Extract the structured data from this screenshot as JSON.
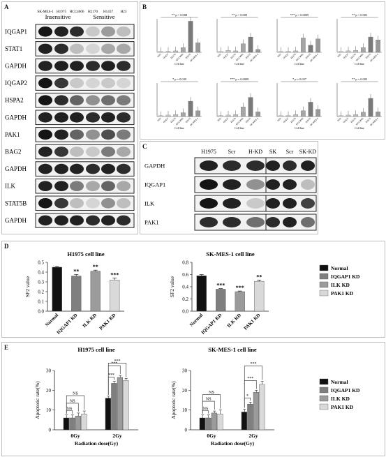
{
  "panel_letters": {
    "a": "A",
    "b": "B",
    "c": "C",
    "d": "D",
    "e": "E"
  },
  "panelA": {
    "columns": [
      "SK-MES-1",
      "H1975",
      "HCC4006",
      "H2170",
      "H1437",
      "H23"
    ],
    "group_insensitive": "Insensitive",
    "group_sensitive": "Sensitive",
    "rows": [
      "IQGAP1",
      "STAT1",
      "GAPDH",
      "IQGAP2",
      "HSPA2",
      "GAPDH",
      "PAK1",
      "BAG2",
      "GAPDH",
      "ILK",
      "STAT5B",
      "GAPDH"
    ]
  },
  "panelB": {
    "xlabel": "Cell line",
    "categories": [
      "H23",
      "H1437",
      "H2170",
      "HCC4006",
      "H1975",
      "SK-MES-1"
    ],
    "charts": [
      {
        "annot": "** p = 0.008",
        "values": [
          0.2,
          0.2,
          0.3,
          1.0,
          6.5,
          2.0
        ]
      },
      {
        "annot": "** p = 0.009",
        "values": [
          0.2,
          0.4,
          0.3,
          1.8,
          3.2,
          0.6
        ]
      },
      {
        "annot": "*** p = 0.0009",
        "values": [
          0.2,
          0.2,
          0.3,
          3.0,
          1.5,
          2.8
        ]
      },
      {
        "annot": "** p = 0.003",
        "values": [
          0.2,
          0.3,
          0.4,
          1.0,
          3.2,
          2.6
        ]
      },
      {
        "annot": "* p = 0.039",
        "values": [
          0.2,
          0.3,
          0.4,
          0.8,
          3.2,
          1.2
        ]
      },
      {
        "annot": "*** p = 0.0009",
        "values": [
          0.2,
          0.3,
          0.4,
          2.0,
          4.0,
          1.0
        ]
      },
      {
        "annot": "* p = 0.027",
        "values": [
          0.2,
          0.2,
          0.4,
          1.2,
          3.0,
          1.5
        ]
      },
      {
        "annot": "** p = 0.005",
        "values": [
          0.2,
          0.3,
          0.4,
          0.9,
          3.8,
          1.0
        ]
      }
    ]
  },
  "panelC": {
    "left_cols": [
      "H1975",
      "Scr",
      "H-KD"
    ],
    "right_cols": [
      "SK",
      "Scr",
      "SK-KD"
    ],
    "rows": [
      "GAPDH",
      "IQGAP1",
      "ILK",
      "PAK1"
    ]
  },
  "chart_data": [
    {
      "type": "bar",
      "title": "H1975  cell line",
      "ylabel": "SF2 value",
      "categories": [
        "Normal",
        "IQGAP1 KD",
        "ILK KD",
        "PAK1 KD"
      ],
      "values": [
        0.45,
        0.36,
        0.41,
        0.32
      ],
      "errors": [
        0.01,
        0.015,
        0.01,
        0.02
      ],
      "significance": [
        "",
        "**",
        "**",
        "***"
      ],
      "ylim": [
        0,
        0.5
      ],
      "yticks": [
        "0.0",
        "0.1",
        "0.2",
        "0.3",
        "0.4",
        "0.5"
      ],
      "colors": [
        "#111111",
        "#7f7f7f",
        "#9b9b9b",
        "#d9d9d9"
      ]
    },
    {
      "type": "bar",
      "title": "SK-MES-1  cell line",
      "ylabel": "SF2 value",
      "categories": [
        "Normal",
        "IQGAP1 KD",
        "ILK KD",
        "PAK1 KD"
      ],
      "values": [
        0.58,
        0.36,
        0.32,
        0.49
      ],
      "errors": [
        0.02,
        0.01,
        0.01,
        0.02
      ],
      "significance": [
        "",
        "***",
        "***",
        "**"
      ],
      "ylim": [
        0,
        0.8
      ],
      "yticks": [
        "0.0",
        "0.2",
        "0.4",
        "0.6",
        "0.8"
      ],
      "colors": [
        "#111111",
        "#7f7f7f",
        "#9b9b9b",
        "#d9d9d9"
      ]
    },
    {
      "type": "bar",
      "title": "H1975 cell line",
      "ylabel": "Apoptotic rate(%)",
      "xlabel": "Radiation dose(Gy)",
      "categories": [
        "0Gy",
        "2Gy"
      ],
      "series": [
        {
          "name": "Normal",
          "values": [
            6,
            16
          ],
          "errors": [
            1.5,
            1.0
          ]
        },
        {
          "name": "IQGAP1 KD",
          "values": [
            6,
            23.5
          ],
          "errors": [
            1.5,
            1.0
          ]
        },
        {
          "name": "ILK KD",
          "values": [
            7,
            26.5
          ],
          "errors": [
            1.5,
            1.0
          ]
        },
        {
          "name": "PAK1 KD",
          "values": [
            8,
            25
          ],
          "errors": [
            1.5,
            1.0
          ]
        }
      ],
      "ylim": [
        0,
        30
      ],
      "yticks": [
        "0",
        "10",
        "20",
        "30"
      ],
      "annotations": [
        "NS",
        "NS",
        "NS",
        "***",
        "***",
        "***"
      ]
    },
    {
      "type": "bar",
      "title": "SK-MES-1 cell line",
      "ylabel": "Apoptotic rate(%)",
      "xlabel": "Radiation dose(Gy)",
      "categories": [
        "0Gy",
        "2Gy"
      ],
      "series": [
        {
          "name": "Normal",
          "values": [
            6,
            9
          ],
          "errors": [
            1.5,
            1.5
          ]
        },
        {
          "name": "IQGAP1 KD",
          "values": [
            6,
            13
          ],
          "errors": [
            1.5,
            1.0
          ]
        },
        {
          "name": "ILK KD",
          "values": [
            8.5,
            19
          ],
          "errors": [
            1.0,
            1.0
          ]
        },
        {
          "name": "PAK1 KD",
          "values": [
            8,
            23
          ],
          "errors": [
            2.0,
            1.5
          ]
        }
      ],
      "ylim": [
        0,
        30
      ],
      "yticks": [
        "0",
        "10",
        "20",
        "30"
      ],
      "annotations": [
        "NS",
        "NS",
        "NS",
        "*",
        "***",
        "***"
      ]
    }
  ],
  "legend": {
    "items": [
      "Normal",
      "IQGAP1 KD",
      "ILK KD",
      "PAK1 KD"
    ],
    "colors": [
      "#111111",
      "#7f7f7f",
      "#9b9b9b",
      "#d9d9d9"
    ]
  }
}
